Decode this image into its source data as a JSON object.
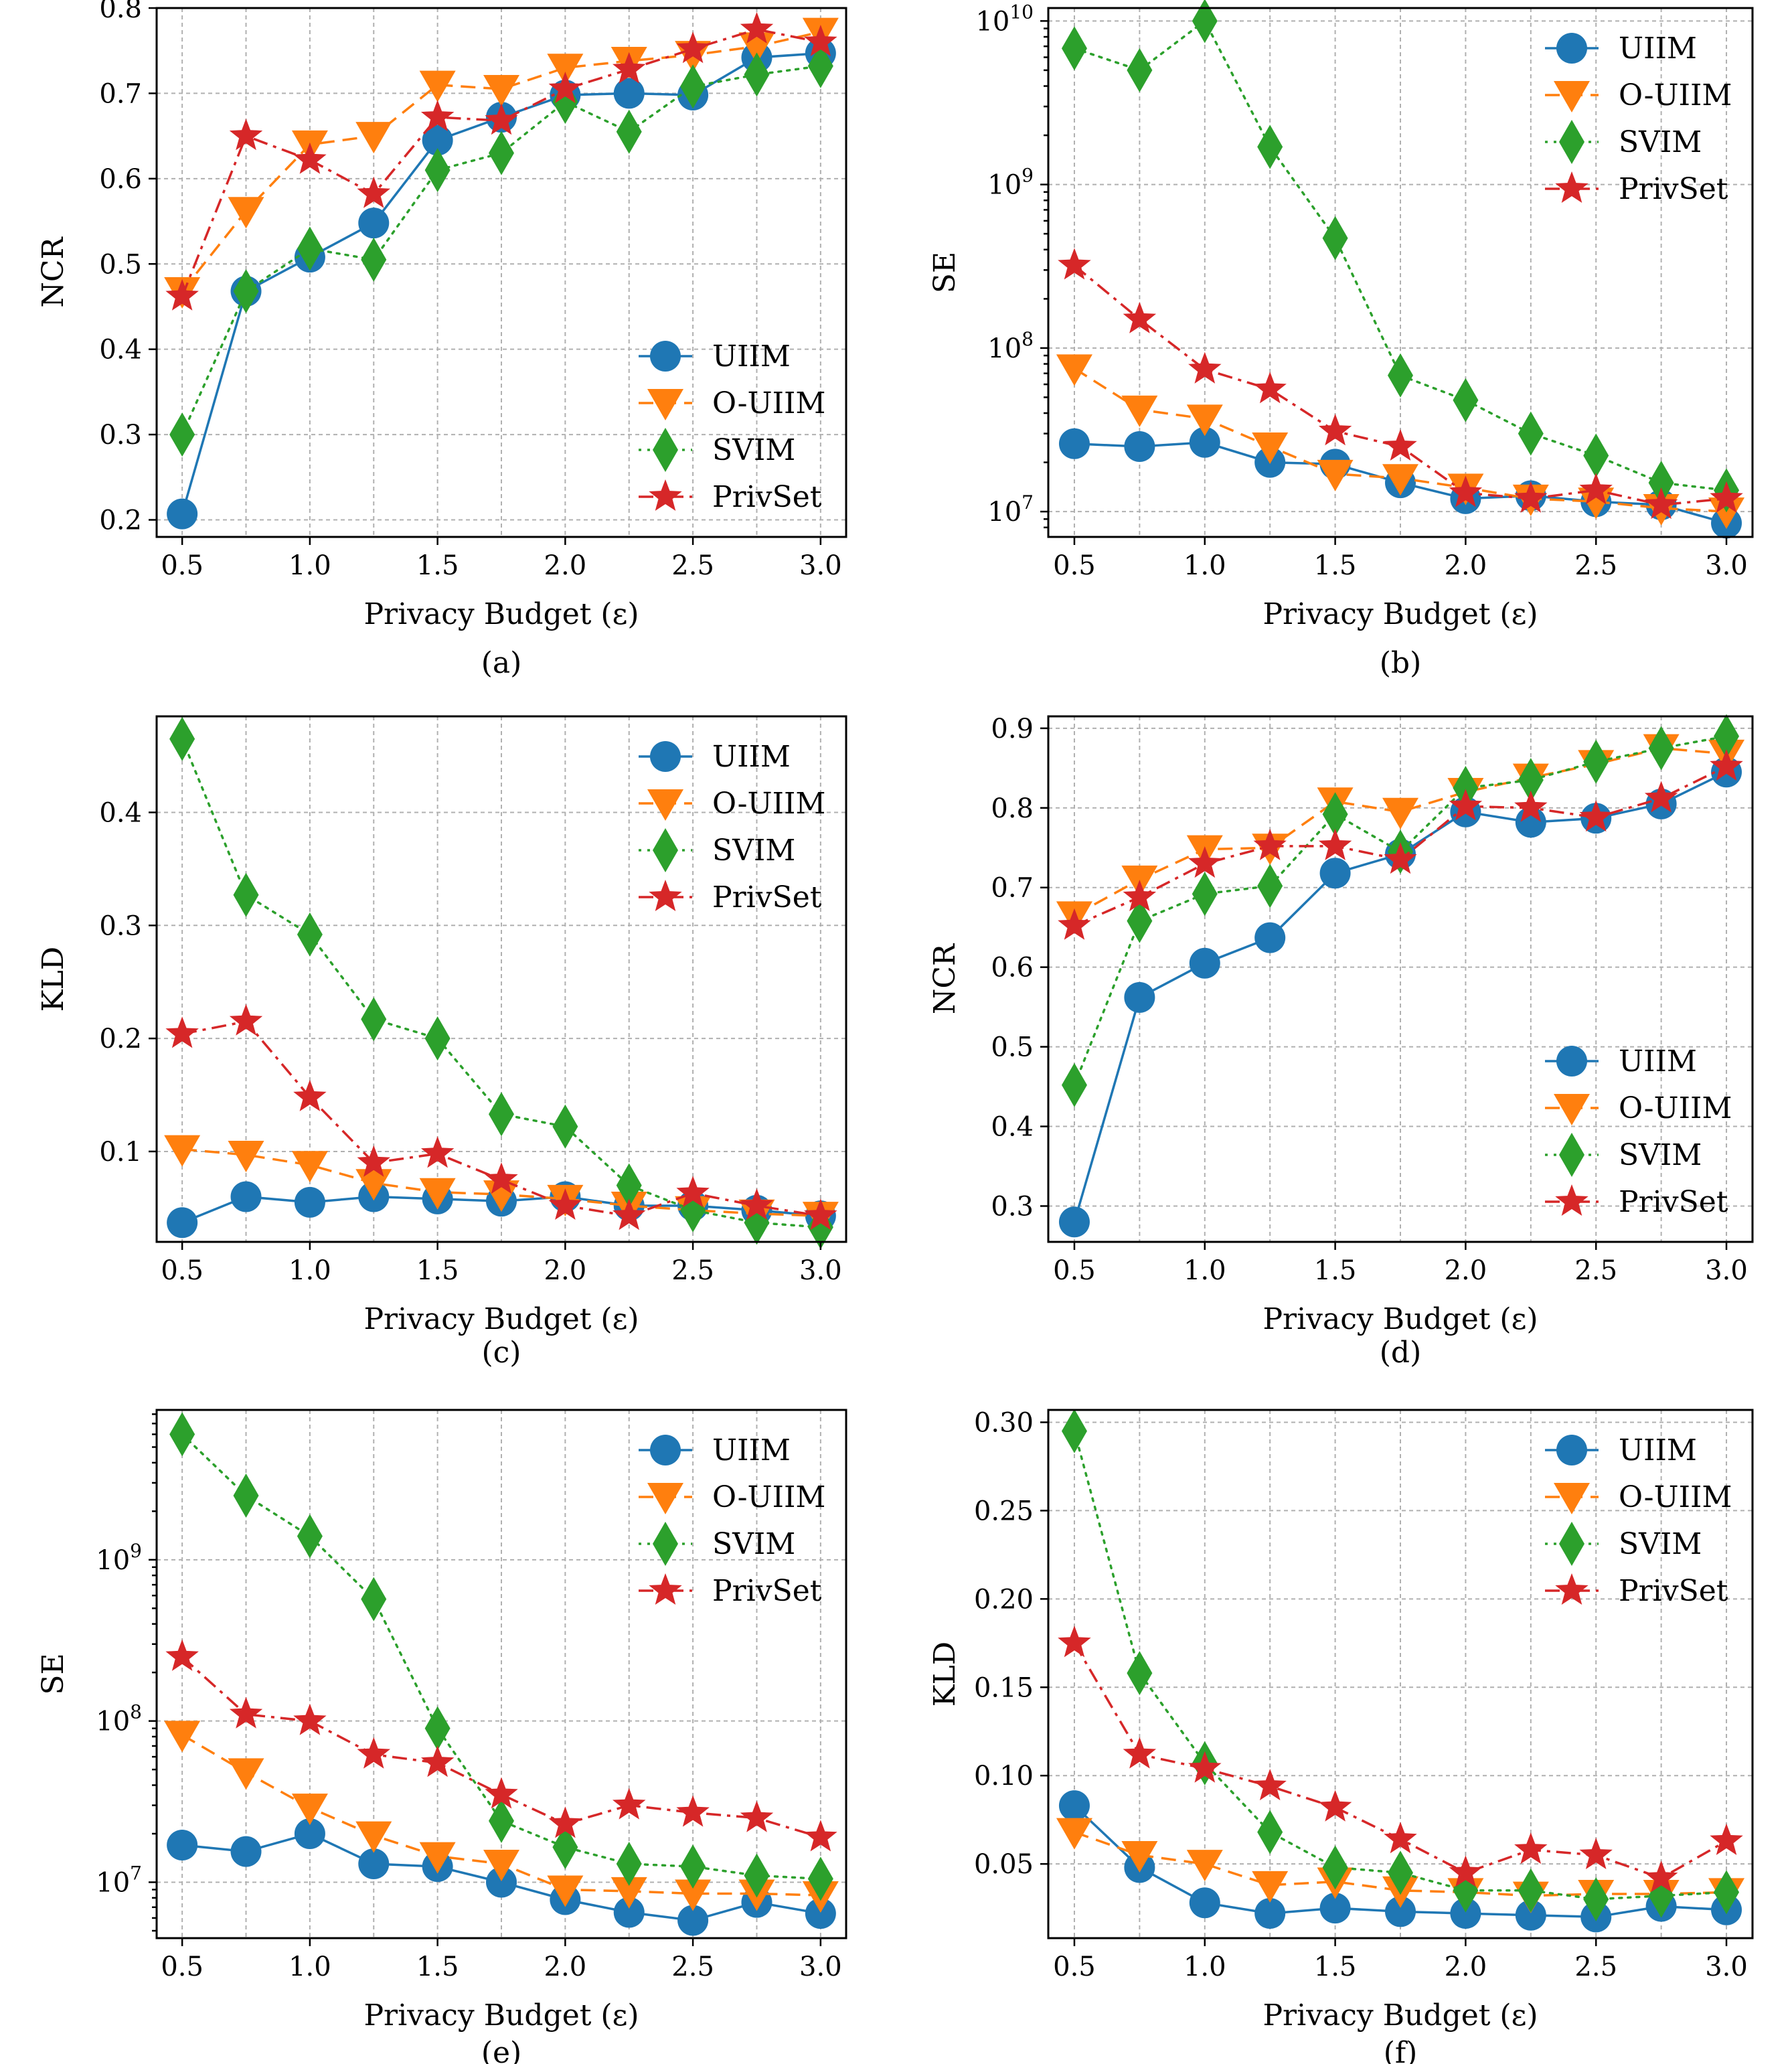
{
  "figure": {
    "xlabel": "Privacy Budget (ε)",
    "x_tick_labels": [
      "0.5",
      "1.0",
      "1.5",
      "2.0",
      "2.5",
      "3.0"
    ],
    "legend": [
      "UIIM",
      "O-UIIM",
      "SVIM",
      "PrivSet"
    ],
    "colors": {
      "UIIM": "#1f77b4",
      "O-UIIM": "#ff7f0e",
      "SVIM": "#2ca02c",
      "PrivSet": "#d62728"
    }
  },
  "chart_data": [
    {
      "caption": "(a)",
      "type": "line",
      "ylabel": "NCR",
      "xlabel": "Privacy Budget (ε)",
      "x": [
        0.5,
        0.75,
        1.0,
        1.25,
        1.5,
        1.75,
        2.0,
        2.25,
        2.5,
        2.75,
        3.0
      ],
      "xlim": [
        0.4,
        3.1
      ],
      "ylim": [
        0.18,
        0.8
      ],
      "y_scale": "linear",
      "y_ticks": [
        0.2,
        0.3,
        0.4,
        0.5,
        0.6,
        0.7,
        0.8
      ],
      "y_tick_labels": [
        "0.2",
        "0.3",
        "0.4",
        "0.5",
        "0.6",
        "0.7",
        "0.8"
      ],
      "legend_position": "lower-right",
      "grid": true,
      "series": [
        {
          "name": "UIIM",
          "marker": "circle",
          "linestyle": "solid",
          "values": [
            0.207,
            0.468,
            0.508,
            0.548,
            0.645,
            0.672,
            0.698,
            0.7,
            0.698,
            0.742,
            0.747
          ]
        },
        {
          "name": "O-UIIM",
          "marker": "triangle-down",
          "linestyle": "dashed",
          "values": [
            0.468,
            0.562,
            0.64,
            0.65,
            0.71,
            0.705,
            0.73,
            0.738,
            0.745,
            0.755,
            0.772
          ]
        },
        {
          "name": "SVIM",
          "marker": "diamond",
          "linestyle": "dotted",
          "values": [
            0.3,
            0.468,
            0.518,
            0.505,
            0.61,
            0.63,
            0.69,
            0.655,
            0.708,
            0.722,
            0.732
          ]
        },
        {
          "name": "PrivSet",
          "marker": "star",
          "linestyle": "dashdot",
          "values": [
            0.462,
            0.65,
            0.622,
            0.582,
            0.672,
            0.668,
            0.705,
            0.728,
            0.752,
            0.775,
            0.76
          ]
        }
      ]
    },
    {
      "caption": "(b)",
      "type": "line",
      "ylabel": "SE",
      "xlabel": "Privacy Budget (ε)",
      "x": [
        0.5,
        0.75,
        1.0,
        1.25,
        1.5,
        1.75,
        2.0,
        2.25,
        2.5,
        2.75,
        3.0
      ],
      "xlim": [
        0.4,
        3.1
      ],
      "ylim": [
        7000000,
        12000000000
      ],
      "y_scale": "log",
      "y_ticks": [
        10000000,
        100000000,
        1000000000,
        10000000000
      ],
      "y_tick_labels": [
        "10^7",
        "10^8",
        "10^9",
        "10^10"
      ],
      "legend_position": "top-right",
      "grid": true,
      "series": [
        {
          "name": "UIIM",
          "marker": "circle",
          "linestyle": "solid",
          "values": [
            26000000,
            25000000,
            26500000,
            20000000,
            19500000,
            15000000,
            12000000,
            12500000,
            11500000,
            11000000,
            8500000
          ]
        },
        {
          "name": "O-UIIM",
          "marker": "triangle-down",
          "linestyle": "dashed",
          "values": [
            75000000,
            42000000,
            37000000,
            25000000,
            17000000,
            16000000,
            14000000,
            12000000,
            11500000,
            10500000,
            10000000
          ]
        },
        {
          "name": "SVIM",
          "marker": "diamond",
          "linestyle": "dotted",
          "values": [
            6800000000,
            5000000000,
            10000000000,
            1700000000,
            470000000,
            68000000,
            48000000,
            30000000,
            22000000,
            15000000,
            13500000
          ]
        },
        {
          "name": "PrivSet",
          "marker": "star",
          "linestyle": "dashdot",
          "values": [
            320000000,
            150000000,
            74000000,
            56000000,
            31000000,
            25000000,
            13000000,
            12000000,
            13500000,
            11000000,
            12000000
          ]
        }
      ]
    },
    {
      "caption": "(c)",
      "type": "line",
      "ylabel": "KLD",
      "xlabel": "Privacy Budget (ε)",
      "x": [
        0.5,
        0.75,
        1.0,
        1.25,
        1.5,
        1.75,
        2.0,
        2.25,
        2.5,
        2.75,
        3.0
      ],
      "xlim": [
        0.4,
        3.1
      ],
      "ylim": [
        0.02,
        0.485
      ],
      "y_scale": "linear",
      "y_ticks": [
        0.1,
        0.2,
        0.3,
        0.4
      ],
      "y_tick_labels": [
        "0.1",
        "0.2",
        "0.3",
        "0.4"
      ],
      "legend_position": "top-right",
      "grid": true,
      "series": [
        {
          "name": "UIIM",
          "marker": "circle",
          "linestyle": "solid",
          "values": [
            0.037,
            0.06,
            0.055,
            0.06,
            0.058,
            0.056,
            0.06,
            0.052,
            0.052,
            0.048,
            0.043
          ]
        },
        {
          "name": "O-UIIM",
          "marker": "triangle-down",
          "linestyle": "dashed",
          "values": [
            0.102,
            0.097,
            0.088,
            0.072,
            0.064,
            0.062,
            0.058,
            0.052,
            0.048,
            0.045,
            0.043
          ]
        },
        {
          "name": "SVIM",
          "marker": "diamond",
          "linestyle": "dotted",
          "values": [
            0.465,
            0.327,
            0.292,
            0.217,
            0.2,
            0.133,
            0.122,
            0.07,
            0.048,
            0.037,
            0.033
          ]
        },
        {
          "name": "PrivSet",
          "marker": "star",
          "linestyle": "dashdot",
          "values": [
            0.204,
            0.215,
            0.148,
            0.09,
            0.098,
            0.075,
            0.052,
            0.043,
            0.063,
            0.052,
            0.043
          ]
        }
      ]
    },
    {
      "caption": "(d)",
      "type": "line",
      "ylabel": "NCR",
      "xlabel": "Privacy Budget (ε)",
      "x": [
        0.5,
        0.75,
        1.0,
        1.25,
        1.5,
        1.75,
        2.0,
        2.25,
        2.5,
        2.75,
        3.0
      ],
      "xlim": [
        0.4,
        3.1
      ],
      "ylim": [
        0.255,
        0.915
      ],
      "y_scale": "linear",
      "y_ticks": [
        0.3,
        0.4,
        0.5,
        0.6,
        0.7,
        0.8,
        0.9
      ],
      "y_tick_labels": [
        "0.3",
        "0.4",
        "0.5",
        "0.6",
        "0.7",
        "0.8",
        "0.9"
      ],
      "legend_position": "lower-right",
      "grid": true,
      "series": [
        {
          "name": "UIIM",
          "marker": "circle",
          "linestyle": "solid",
          "values": [
            0.28,
            0.562,
            0.605,
            0.637,
            0.718,
            0.742,
            0.795,
            0.782,
            0.787,
            0.805,
            0.845
          ]
        },
        {
          "name": "O-UIIM",
          "marker": "triangle-down",
          "linestyle": "dashed",
          "values": [
            0.665,
            0.71,
            0.748,
            0.75,
            0.808,
            0.795,
            0.82,
            0.838,
            0.855,
            0.875,
            0.868
          ]
        },
        {
          "name": "SVIM",
          "marker": "diamond",
          "linestyle": "dotted",
          "values": [
            0.452,
            0.658,
            0.692,
            0.702,
            0.792,
            0.745,
            0.825,
            0.835,
            0.858,
            0.875,
            0.89
          ]
        },
        {
          "name": "PrivSet",
          "marker": "star",
          "linestyle": "dashdot",
          "values": [
            0.652,
            0.688,
            0.73,
            0.752,
            0.752,
            0.735,
            0.802,
            0.8,
            0.788,
            0.812,
            0.852
          ]
        }
      ]
    },
    {
      "caption": "(e)",
      "type": "line",
      "ylabel": "SE",
      "xlabel": "Privacy Budget (ε)",
      "x": [
        0.5,
        0.75,
        1.0,
        1.25,
        1.5,
        1.75,
        2.0,
        2.25,
        2.5,
        2.75,
        3.0
      ],
      "xlim": [
        0.4,
        3.1
      ],
      "ylim": [
        4500000,
        8500000000
      ],
      "y_scale": "log",
      "y_ticks": [
        10000000,
        100000000,
        1000000000
      ],
      "y_tick_labels": [
        "10^7",
        "10^8",
        "10^9"
      ],
      "legend_position": "top-right",
      "grid": true,
      "series": [
        {
          "name": "UIIM",
          "marker": "circle",
          "linestyle": "solid",
          "values": [
            17000000,
            15500000,
            20000000,
            13000000,
            12500000,
            10000000,
            7800000,
            6500000,
            5800000,
            7500000,
            6400000
          ]
        },
        {
          "name": "O-UIIM",
          "marker": "triangle-down",
          "linestyle": "dashed",
          "values": [
            82000000,
            48000000,
            29000000,
            19500000,
            14500000,
            13000000,
            9000000,
            8800000,
            8500000,
            8500000,
            8300000
          ]
        },
        {
          "name": "SVIM",
          "marker": "diamond",
          "linestyle": "dotted",
          "values": [
            6000000000,
            2500000000,
            1400000000,
            570000000,
            90000000,
            24000000,
            16500000,
            13000000,
            12500000,
            11000000,
            10500000
          ]
        },
        {
          "name": "PrivSet",
          "marker": "star",
          "linestyle": "dashdot",
          "values": [
            250000000,
            110000000,
            100000000,
            62000000,
            55000000,
            35000000,
            23000000,
            30000000,
            27000000,
            25000000,
            19000000
          ]
        }
      ]
    },
    {
      "caption": "(f)",
      "type": "line",
      "ylabel": "KLD",
      "xlabel": "Privacy Budget (ε)",
      "x": [
        0.5,
        0.75,
        1.0,
        1.25,
        1.5,
        1.75,
        2.0,
        2.25,
        2.5,
        2.75,
        3.0
      ],
      "xlim": [
        0.4,
        3.1
      ],
      "ylim": [
        0.008,
        0.307
      ],
      "y_scale": "linear",
      "y_ticks": [
        0.05,
        0.1,
        0.15,
        0.2,
        0.25,
        0.3
      ],
      "y_tick_labels": [
        "0.05",
        "0.10",
        "0.15",
        "0.20",
        "0.25",
        "0.30"
      ],
      "legend_position": "top-right",
      "grid": true,
      "series": [
        {
          "name": "UIIM",
          "marker": "circle",
          "linestyle": "solid",
          "values": [
            0.083,
            0.048,
            0.028,
            0.022,
            0.025,
            0.023,
            0.022,
            0.021,
            0.02,
            0.026,
            0.024
          ]
        },
        {
          "name": "O-UIIM",
          "marker": "triangle-down",
          "linestyle": "dashed",
          "values": [
            0.068,
            0.055,
            0.05,
            0.038,
            0.04,
            0.035,
            0.034,
            0.032,
            0.033,
            0.033,
            0.034
          ]
        },
        {
          "name": "SVIM",
          "marker": "diamond",
          "linestyle": "dotted",
          "values": [
            0.295,
            0.158,
            0.107,
            0.068,
            0.048,
            0.045,
            0.035,
            0.035,
            0.03,
            0.032,
            0.034
          ]
        },
        {
          "name": "PrivSet",
          "marker": "star",
          "linestyle": "dashdot",
          "values": [
            0.175,
            0.112,
            0.104,
            0.094,
            0.082,
            0.064,
            0.045,
            0.058,
            0.055,
            0.042,
            0.063
          ]
        }
      ]
    }
  ]
}
